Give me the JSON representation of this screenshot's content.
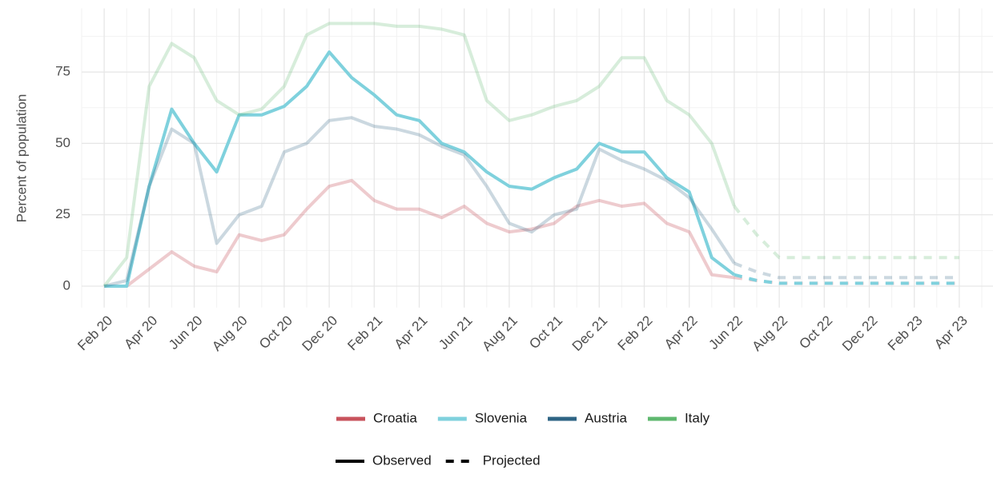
{
  "chart_data": {
    "type": "line",
    "y_label": "Percent of population",
    "x": [
      "2020-02",
      "2020-03",
      "2020-04",
      "2020-05",
      "2020-06",
      "2020-07",
      "2020-08",
      "2020-09",
      "2020-10",
      "2020-11",
      "2020-12",
      "2021-01",
      "2021-02",
      "2021-03",
      "2021-04",
      "2021-05",
      "2021-06",
      "2021-07",
      "2021-08",
      "2021-09",
      "2021-10",
      "2021-11",
      "2021-12",
      "2022-01",
      "2022-02",
      "2022-03",
      "2022-04",
      "2022-05",
      "2022-06",
      "2022-07",
      "2022-08",
      "2022-09",
      "2022-10",
      "2022-11",
      "2022-12",
      "2023-01",
      "2023-02",
      "2023-03",
      "2023-04"
    ],
    "xlim": [
      "2020-01",
      "2023-05"
    ],
    "xticks": [
      {
        "value": "2020-02",
        "label": "Feb 20"
      },
      {
        "value": "2020-04",
        "label": "Apr 20"
      },
      {
        "value": "2020-06",
        "label": "Jun 20"
      },
      {
        "value": "2020-08",
        "label": "Aug 20"
      },
      {
        "value": "2020-10",
        "label": "Oct 20"
      },
      {
        "value": "2020-12",
        "label": "Dec 20"
      },
      {
        "value": "2021-02",
        "label": "Feb 21"
      },
      {
        "value": "2021-04",
        "label": "Apr 21"
      },
      {
        "value": "2021-06",
        "label": "Jun 21"
      },
      {
        "value": "2021-08",
        "label": "Aug 21"
      },
      {
        "value": "2021-10",
        "label": "Oct 21"
      },
      {
        "value": "2021-12",
        "label": "Dec 21"
      },
      {
        "value": "2022-02",
        "label": "Feb 22"
      },
      {
        "value": "2022-04",
        "label": "Apr 22"
      },
      {
        "value": "2022-06",
        "label": "Jun 22"
      },
      {
        "value": "2022-08",
        "label": "Aug 22"
      },
      {
        "value": "2022-10",
        "label": "Oct 22"
      },
      {
        "value": "2022-12",
        "label": "Dec 22"
      },
      {
        "value": "2023-02",
        "label": "Feb 23"
      },
      {
        "value": "2023-04",
        "label": "Apr 23"
      }
    ],
    "ylim": [
      -7.5,
      97
    ],
    "yticks": [
      0,
      25,
      50,
      75
    ],
    "grid": true,
    "series": [
      {
        "name": "Croatia",
        "color": "#c8535c",
        "opacity": 0.3,
        "values": [
          0,
          0,
          6,
          12,
          7,
          5,
          18,
          16,
          18,
          27,
          35,
          37,
          30,
          27,
          27,
          24,
          28,
          22,
          19,
          20,
          22,
          28,
          30,
          28,
          29,
          22,
          19,
          4,
          3,
          null,
          null,
          null,
          null,
          null,
          null,
          null,
          null,
          null,
          null
        ],
        "projected_values": [
          null,
          null,
          null,
          null,
          null,
          null,
          null,
          null,
          null,
          null,
          null,
          null,
          null,
          null,
          null,
          null,
          null,
          null,
          null,
          null,
          null,
          null,
          null,
          null,
          null,
          null,
          null,
          null,
          3,
          2,
          1,
          1,
          1,
          1,
          1,
          1,
          1,
          1,
          1
        ]
      },
      {
        "name": "Slovenia",
        "color": "#7fd1dd",
        "opacity": 1,
        "values": [
          0,
          0,
          35,
          62,
          50,
          40,
          60,
          60,
          63,
          70,
          82,
          73,
          67,
          60,
          58,
          50,
          47,
          40,
          35,
          34,
          38,
          41,
          50,
          47,
          47,
          38,
          33,
          10,
          4,
          null,
          null,
          null,
          null,
          null,
          null,
          null,
          null,
          null,
          null
        ],
        "projected_values": [
          null,
          null,
          null,
          null,
          null,
          null,
          null,
          null,
          null,
          null,
          null,
          null,
          null,
          null,
          null,
          null,
          null,
          null,
          null,
          null,
          null,
          null,
          null,
          null,
          null,
          null,
          null,
          null,
          4,
          2,
          1,
          1,
          1,
          1,
          1,
          1,
          1,
          1,
          1
        ]
      },
      {
        "name": "Austria",
        "color": "#2e6484",
        "opacity": 0.25,
        "values": [
          0,
          2,
          35,
          55,
          50,
          15,
          25,
          28,
          47,
          50,
          58,
          59,
          56,
          55,
          53,
          49,
          46,
          35,
          22,
          19,
          25,
          27,
          48,
          44,
          41,
          37,
          31,
          20,
          8,
          null,
          null,
          null,
          null,
          null,
          null,
          null,
          null,
          null,
          null
        ],
        "projected_values": [
          null,
          null,
          null,
          null,
          null,
          null,
          null,
          null,
          null,
          null,
          null,
          null,
          null,
          null,
          null,
          null,
          null,
          null,
          null,
          null,
          null,
          null,
          null,
          null,
          null,
          null,
          null,
          null,
          8,
          5,
          3,
          3,
          3,
          3,
          3,
          3,
          3,
          3,
          3
        ]
      },
      {
        "name": "Italy",
        "color": "#5fb86f",
        "opacity": 0.25,
        "values": [
          0,
          10,
          70,
          85,
          80,
          65,
          60,
          62,
          70,
          88,
          92,
          92,
          92,
          91,
          91,
          90,
          88,
          65,
          58,
          60,
          63,
          65,
          70,
          80,
          80,
          65,
          60,
          50,
          28,
          null,
          null,
          null,
          null,
          null,
          null,
          null,
          null,
          null,
          null
        ],
        "projected_values": [
          null,
          null,
          null,
          null,
          null,
          null,
          null,
          null,
          null,
          null,
          null,
          null,
          null,
          null,
          null,
          null,
          null,
          null,
          null,
          null,
          null,
          null,
          null,
          null,
          null,
          null,
          null,
          null,
          28,
          18,
          10,
          10,
          10,
          10,
          10,
          10,
          10,
          10,
          10
        ]
      }
    ],
    "linetype_legend": [
      "Observed",
      "Projected"
    ]
  }
}
